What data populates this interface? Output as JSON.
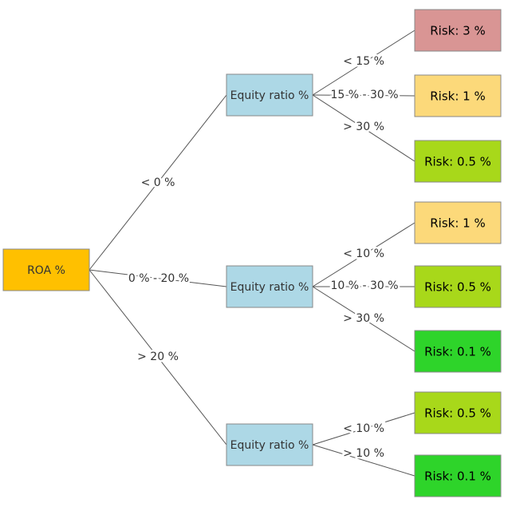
{
  "nodes": [
    {
      "label": "ROA %"
    },
    {
      "label": "Equity ratio %"
    },
    {
      "label": "Equity ratio %"
    },
    {
      "label": "Equity ratio %"
    },
    {
      "label": "Risk: 3 %"
    },
    {
      "label": "Risk: 1 %"
    },
    {
      "label": "Risk: 0.5 %"
    },
    {
      "label": "Risk: 1 %"
    },
    {
      "label": "Risk: 0.5 %"
    },
    {
      "label": "Risk: 0.1 %"
    },
    {
      "label": "Risk: 0.5 %"
    },
    {
      "label": "Risk: 0.1 %"
    }
  ],
  "edges": [
    {
      "label": "< 0 %"
    },
    {
      "label": "0 % - 20 %"
    },
    {
      "label": "> 20 %"
    },
    {
      "label": "< 15 %"
    },
    {
      "label": "15 % - 30 %"
    },
    {
      "label": "> 30 %"
    },
    {
      "label": "< 10 %"
    },
    {
      "label": "10 % - 30 %"
    },
    {
      "label": "> 30 %"
    },
    {
      "label": "< 10 %"
    },
    {
      "label": "> 10 %"
    }
  ]
}
